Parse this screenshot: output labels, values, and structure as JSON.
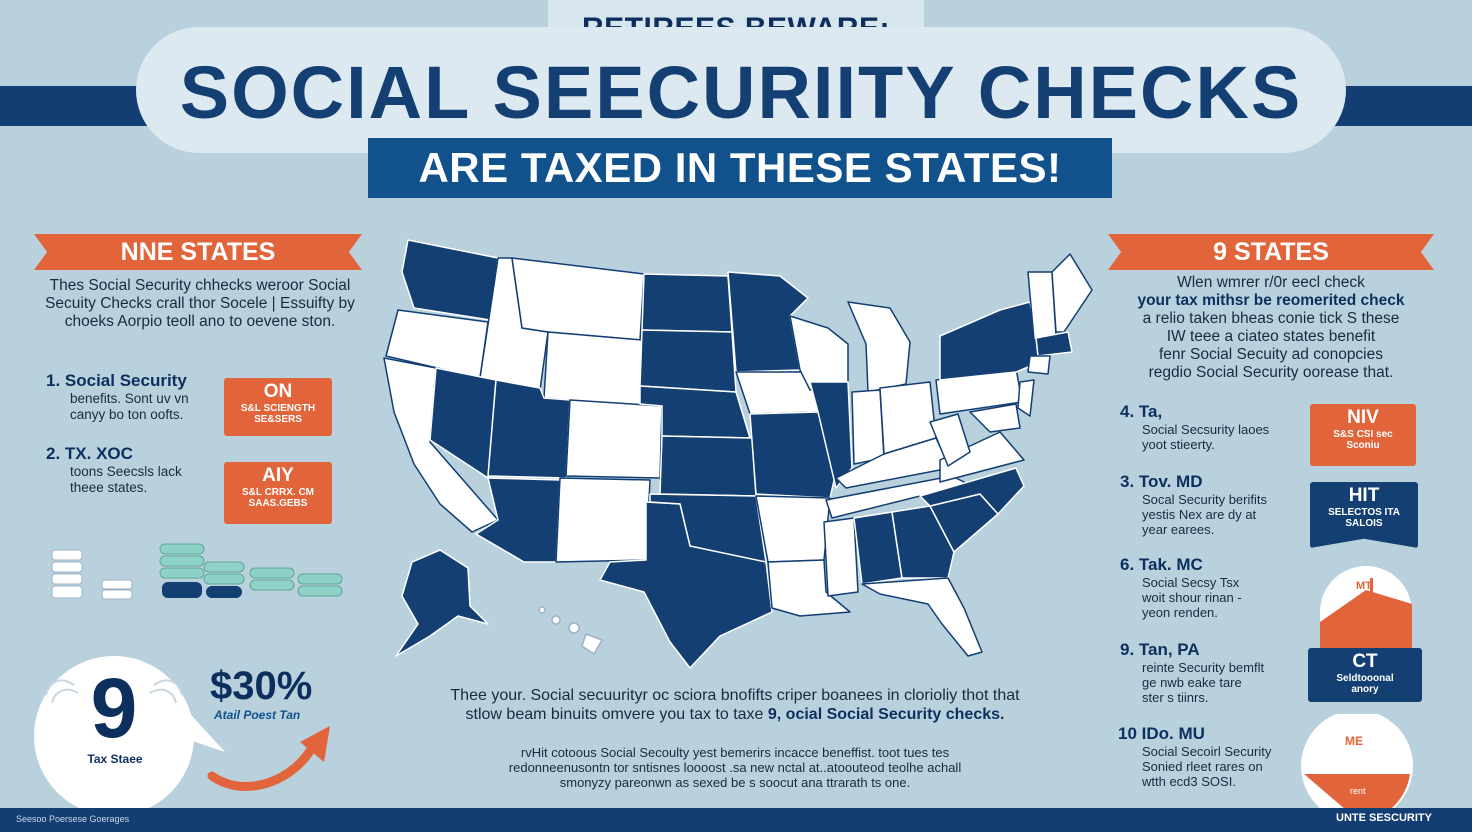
{
  "header": {
    "kicker": "RETIREES BEWARE:",
    "title": "SOCIAL SEECURIITY CHECKS",
    "subtitle": "ARE TAXED IN THESE STATES!"
  },
  "left": {
    "ribbon": "NNE STATES",
    "paragraph": "Thes Social Security chhecks weroor Social Secuity Checks crall thor Socele | Essuifty by choeks Aorpio teoll ano to oevene ston.",
    "items": [
      {
        "title": "1.  Social Security",
        "text1": "benefits. Sont uv vn",
        "text2": "canyy bo ton oofts."
      },
      {
        "title": "2.  TX. XOC",
        "text1": "toons Seecsls lack",
        "text2": "theee states."
      }
    ],
    "tags": [
      {
        "code": "ON",
        "sub1": "S&L SCIENGTH",
        "sub2": "SE&SERS"
      },
      {
        "code": "AIY",
        "sub1": "S&L CRRX. CM",
        "sub2": "SAAS.GEBS"
      }
    ],
    "badge_number": "9",
    "badge_label": "Tax Staee",
    "percent": "$30%",
    "percent_label": "Atail Poest Tan"
  },
  "right": {
    "ribbon": "9 STATES",
    "paragraph_lines": [
      "Wlen wmrer r/0r eecl check",
      "your tax mithsr be reomerited check",
      "a relio taken bheas conie tick S these",
      "IW teee a ciateo states benefit",
      "fenr Social Secuity ad conopcies",
      "regdio Social Security oorease that."
    ],
    "items": [
      {
        "num": "4.  Ta,",
        "text1": "Social Secsurity laoes",
        "text2": "yoot stieerty."
      },
      {
        "num": "3.  Tov. MD",
        "text1": "Socal Security berifits",
        "text2": "yestis Nex are dy at",
        "text3": "year earees."
      },
      {
        "num": "6.  Tak. MC",
        "text1": "Social Secsy Tsx",
        "text2": "woit shour rinan -",
        "text3": "yeon renden."
      },
      {
        "num": "9.  Tan,  PA",
        "text1": "reinte Security bemflt",
        "text2": "ge nwb eake tare",
        "text3": "ster s tiinrs."
      },
      {
        "num": "10  IDo. MU",
        "text1": "Social Secoirl Security",
        "text2": "Sonied rleet rares on",
        "text3": "wtth ecd3 SOSI."
      }
    ],
    "tags": [
      {
        "code": "NIV",
        "sub1": "S&S CSI sec",
        "sub2": "Sconiu"
      },
      {
        "code": "HIT",
        "sub1": "SELECTOS ITA",
        "sub2": "SALOIS"
      },
      {
        "code": "MT",
        "sub1": "",
        "sub2": ""
      },
      {
        "code": "CT",
        "sub1": "Seldtooonal",
        "sub2": "anory"
      },
      {
        "code": "ME",
        "sub1": "",
        "sub2": "rent"
      }
    ]
  },
  "bottom": {
    "line1": "Thee your.  Social secuurityr oc sciora bnofifts criper boanees  in clorioliy thot that",
    "line2_pre": "stlow beam binuits  omvere you tax to taxe ",
    "line2_bold": "9, ocial Social Security checks.",
    "fine_lines": [
      "rvHit cotoous Social Secoulty yest bemerirs incacce beneffist. toot tues tes",
      "redonneenusontn tor sntisnes loooost .sa new nctal at..atoouteod teolhe achall",
      "smonyzy pareonwn as sexed be s soocut ana ttrarath ts one."
    ]
  },
  "footer": {
    "left": "Seesoo Poersese Goerages",
    "right": "UNTE SESCURITY"
  },
  "colors": {
    "background": "#b9d0dd",
    "navy": "#143f72",
    "blue": "#11528d",
    "orange": "#e2643a",
    "white": "#ffffff"
  }
}
